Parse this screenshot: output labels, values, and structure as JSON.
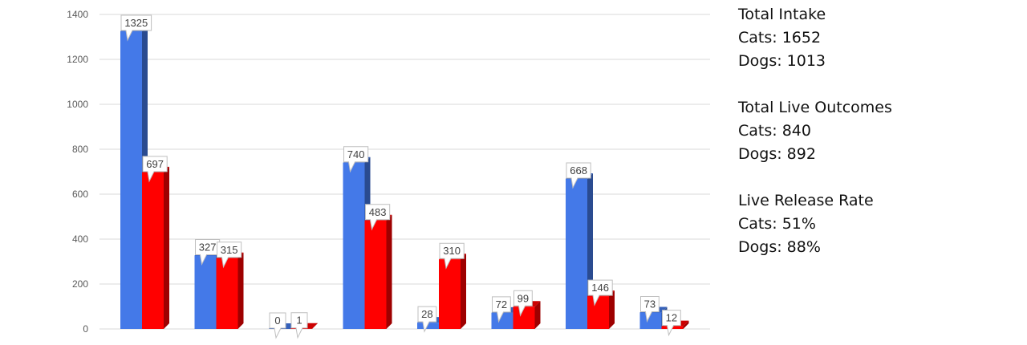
{
  "chart_data": {
    "type": "bar",
    "style": "3d-clustered",
    "grid": true,
    "ylim": [
      0,
      1400
    ],
    "yticks": [
      0,
      200,
      400,
      600,
      800,
      1000,
      1200,
      1400
    ],
    "categories": [
      "",
      "",
      "",
      "",
      "",
      "",
      "",
      ""
    ],
    "series": [
      {
        "values": [
          1325,
          327,
          0,
          740,
          28,
          72,
          668,
          73
        ],
        "color": "#4479e8"
      },
      {
        "values": [
          697,
          315,
          1,
          483,
          310,
          99,
          146,
          12
        ],
        "color": "#ff0000"
      }
    ]
  },
  "summary": {
    "intake": {
      "title": "Total Intake",
      "cats": "Cats: 1652",
      "dogs": "Dogs: 1013"
    },
    "outcomes": {
      "title": "Total Live Outcomes",
      "cats": "Cats: 840",
      "dogs": "Dogs: 892"
    },
    "rate": {
      "title": "Live Release Rate",
      "cats": "Cats: 51%",
      "dogs": "Dogs: 88%"
    }
  }
}
